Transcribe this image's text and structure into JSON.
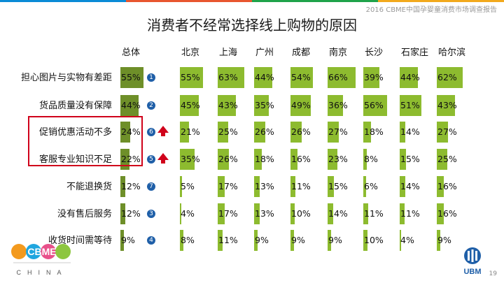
{
  "source": "2016 CBME中国孕婴童消费市场调查报告",
  "title": "消费者不经常选择线上购物的原因",
  "page_number": "19",
  "colors": {
    "bar": "#8dbb2f",
    "total_bar": "#6e8f29",
    "highlight": "#d0021b",
    "rank_badge": "#1f5fa8",
    "topbar": [
      "#0a8bd6",
      "#e8562f",
      "#1fa34a",
      "#f2a91d"
    ]
  },
  "logos": {
    "cbme": "CBME",
    "cbme_sub": "CHINA",
    "ubm": "UBM"
  },
  "chart_data": {
    "type": "bar",
    "title": "消费者不经常选择线上购物的原因",
    "columns": [
      "总体",
      "北京",
      "上海",
      "广州",
      "成都",
      "南京",
      "长沙",
      "石家庄",
      "哈尔滨"
    ],
    "categories": [
      "担心图片与实物有差距",
      "货品质量没有保障",
      "促销优惠活动不多",
      "客服专业知识不足",
      "不能退换货",
      "没有售后服务",
      "收货时间需等待"
    ],
    "ranks": [
      "1",
      "2",
      "6",
      "5",
      "7",
      "3",
      "4"
    ],
    "up_arrows": [
      false,
      false,
      true,
      true,
      false,
      false,
      false
    ],
    "highlighted_rows": [
      2,
      3
    ],
    "values": [
      [
        55,
        55,
        63,
        44,
        54,
        66,
        39,
        44,
        62
      ],
      [
        44,
        45,
        43,
        35,
        49,
        36,
        56,
        51,
        43
      ],
      [
        24,
        21,
        25,
        26,
        26,
        27,
        18,
        14,
        27
      ],
      [
        22,
        35,
        26,
        18,
        16,
        23,
        8,
        15,
        25
      ],
      [
        12,
        5,
        17,
        13,
        11,
        15,
        6,
        14,
        16
      ],
      [
        12,
        4,
        17,
        13,
        10,
        14,
        11,
        11,
        16
      ],
      [
        9,
        8,
        11,
        9,
        9,
        9,
        10,
        4,
        9
      ]
    ],
    "unit": "%",
    "ylim": [
      0,
      100
    ]
  }
}
